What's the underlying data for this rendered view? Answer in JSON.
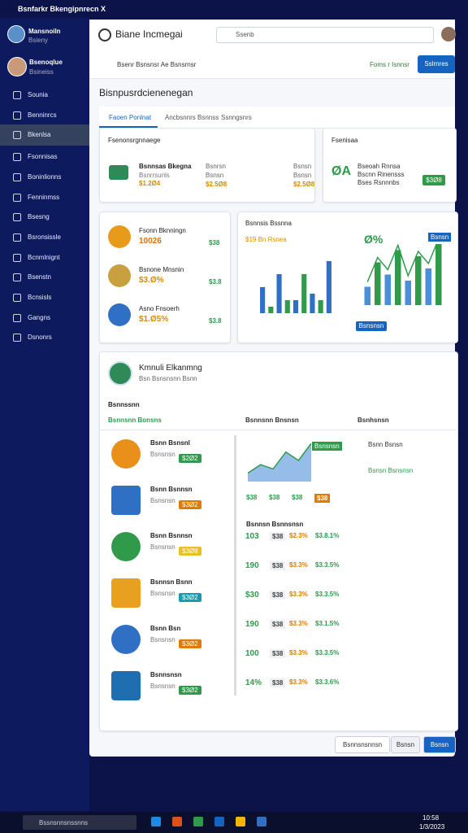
{
  "window_title": "Bsnfarkr Bkengipnrecn X",
  "sidebar": {
    "user": {
      "name": "Mansnoiln",
      "sub": "Bsieny"
    },
    "user2": {
      "name": "Bsenoqlue",
      "sub": "Bsineiss"
    },
    "items": [
      "Sounia",
      "Benninrcs",
      "Bkenlsa",
      "Fsonnisas",
      "Boninlionns",
      "Fenninmss",
      "Bsesng",
      "Bsronsissle",
      "Bcnmlnignt",
      "Bsenstn",
      "Bcnsisls",
      "Gangns",
      "Dsnonrs"
    ]
  },
  "header": {
    "app": "Biane Incmegai",
    "search": "Ssenb"
  },
  "toolbar": {
    "breadcrumb": "Bsenr Bsnsnsr  Ae Bsnsrnsr",
    "link": "Foms r Isnnsr",
    "button": "Sslrnres"
  },
  "page_title": "Bisnpusrdcienenegan",
  "tabs": [
    "Faoen Ponlnat",
    "Ancbsnnrs Bsnnss",
    "Ssnngsnrs"
  ],
  "card1": {
    "title": "Fsenonsrgnnaege",
    "name": "Bsnnsas Bkegna",
    "sub": "Bsnrrsunls",
    "value": "$1.2Ø4",
    "col2": [
      "Bsnrsn",
      "Bsnsn",
      "$2.5Ø8"
    ],
    "col3": [
      "Bsnsn",
      "Bsnsn",
      "$2.5Ø8"
    ]
  },
  "card2": {
    "title": "Fsenisaa",
    "big": "ØA",
    "lines": [
      "Bseoah Rnnsa",
      "Bscnn Rinensss",
      "Bses Rsnnnbs"
    ],
    "button": "$3Ø8"
  },
  "stats": [
    {
      "name": "Fsonn Bknningn",
      "value": "10026",
      "extra": "$38"
    },
    {
      "name": "Bsnone Mnsnin",
      "value": "$3.Ø%",
      "extra": "$3.8"
    },
    {
      "name": "Asno Fnsoerh",
      "value": "$1.Ø5%",
      "extra": "$3.8"
    }
  ],
  "charts": [
    {
      "type": "bar",
      "title": "Bsnnsis Bssnna",
      "subtitle": "$19  Bn Rsnea",
      "ylim": [
        0,
        10
      ],
      "colors": [
        "#2f6fc4",
        "#2e9a4a"
      ],
      "values": [
        4,
        1,
        6,
        2,
        2,
        6,
        3,
        2,
        8
      ]
    },
    {
      "type": "bar",
      "title": "Ø%",
      "ylim": [
        0,
        10
      ],
      "colors": [
        "#4a8fd8",
        "#2e9a4a"
      ],
      "values": [
        3,
        7,
        5,
        9,
        4,
        8,
        6,
        10
      ],
      "button": "Bsnsnsn",
      "legend": "Bsnsn"
    }
  ],
  "panel": {
    "title": "Kmnuli Elkanmng",
    "sub": "Bsn Bsnsnsnn Bsnn",
    "section": "Bsnnssnn",
    "columns": [
      "Bsnnsnn Bonsns",
      "Bsnnsnn Bnsnsn",
      "Bsnhsnsn"
    ],
    "list": [
      {
        "name": "Bsnn Bsnsnl",
        "sub": "Bsnsnsn",
        "tag": "$2Ø2"
      },
      {
        "name": "Bsnn Bsnnsn",
        "sub": "Bsnsnsn",
        "tag": "$3Ø2"
      },
      {
        "name": "Bsnn Bsnnsn",
        "sub": "Bsnsnsn",
        "tag": "$3Ø8"
      },
      {
        "name": "Bsnnsn Bsnn",
        "sub": "Bsnsnsn",
        "tag": "$3Ø2"
      },
      {
        "name": "Bsnn Bsn",
        "sub": "Bsnsnsn",
        "tag": "$3Ø2"
      },
      {
        "name": "Bsnnsnsn",
        "sub": "Bsnsnsn",
        "tag": "$3Ø2"
      }
    ],
    "chart": {
      "type": "line",
      "ylim": [
        0,
        10
      ],
      "values": [
        2,
        4,
        3,
        7,
        5,
        9
      ],
      "color": "#2f6fc4",
      "tag": "Bsnsnsn"
    },
    "chart_row": [
      "$38",
      "$38",
      "$38",
      "$38"
    ],
    "table_title": "Bsnnsn Bsnnsnsn",
    "rows": [
      [
        "103",
        "$38",
        "$2.3%",
        "$3.8.1%"
      ],
      [
        "190",
        "$38",
        "$3.3%",
        "$3.3.5%"
      ],
      [
        "$30",
        "$38",
        "$3.3%",
        "$3.3.5%"
      ],
      [
        "190",
        "$38",
        "$3.3%",
        "$3.1.5%"
      ],
      [
        "100",
        "$38",
        "$3.3%",
        "$3.3.5%"
      ],
      [
        "14%",
        "$38",
        "$3.3%",
        "$3.3.6%"
      ]
    ],
    "side": [
      "Bsnn Bsnsn",
      "Bsnsn Bsnsnsn"
    ]
  },
  "footer": [
    "Bsnnsnsnnsn",
    "Bsnsn",
    "Bsnsn"
  ],
  "taskbar": {
    "search": "Bssnsnnsnssnns",
    "time": "10:58",
    "date": "1/3/2023"
  }
}
